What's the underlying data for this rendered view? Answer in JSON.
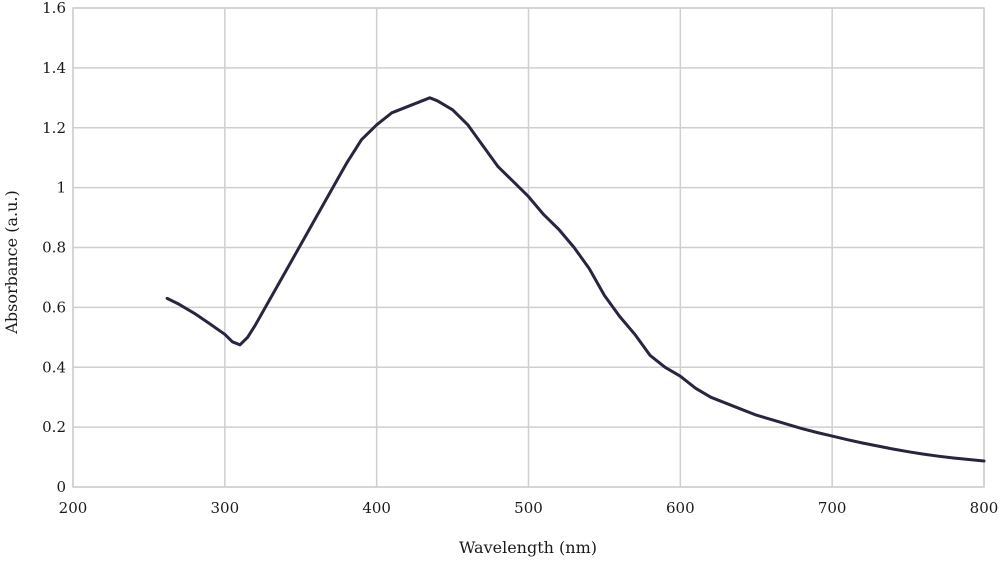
{
  "chart_data": {
    "type": "line",
    "xlabel": "Wavelength (nm)",
    "ylabel": "Absorbance (a.u.)",
    "xlim": [
      200,
      800
    ],
    "ylim": [
      0,
      1.6
    ],
    "x_ticks": [
      200,
      300,
      400,
      500,
      600,
      700,
      800
    ],
    "x_tick_labels": [
      "200",
      "300",
      "400",
      "500",
      "600",
      "700",
      "800"
    ],
    "y_ticks": [
      0,
      0.2,
      0.4,
      0.6,
      0.8,
      1.0,
      1.2,
      1.4,
      1.6
    ],
    "y_tick_labels": [
      "0",
      "0.2",
      "0.4",
      "0.6",
      "0.8",
      "1",
      "1.2",
      "1.4",
      "1.6"
    ],
    "grid": true,
    "legend": "none",
    "line_color": "#2b2340",
    "grid_color": "#cfcfcf",
    "series": [
      {
        "x": [
          262,
          270,
          280,
          290,
          300,
          305,
          310,
          315,
          320,
          330,
          340,
          350,
          360,
          370,
          380,
          390,
          400,
          410,
          420,
          430,
          435,
          440,
          450,
          460,
          470,
          480,
          490,
          500,
          510,
          520,
          530,
          540,
          550,
          560,
          570,
          580,
          590,
          600,
          610,
          620,
          630,
          640,
          650,
          660,
          670,
          680,
          690,
          700,
          710,
          720,
          730,
          740,
          750,
          760,
          770,
          780,
          790,
          800
        ],
        "y": [
          0.63,
          0.61,
          0.58,
          0.545,
          0.51,
          0.485,
          0.475,
          0.5,
          0.54,
          0.63,
          0.72,
          0.81,
          0.9,
          0.99,
          1.08,
          1.16,
          1.21,
          1.25,
          1.27,
          1.29,
          1.3,
          1.29,
          1.26,
          1.21,
          1.14,
          1.07,
          1.02,
          0.97,
          0.91,
          0.86,
          0.8,
          0.73,
          0.64,
          0.57,
          0.51,
          0.44,
          0.4,
          0.37,
          0.33,
          0.3,
          0.28,
          0.26,
          0.24,
          0.225,
          0.21,
          0.195,
          0.182,
          0.17,
          0.158,
          0.147,
          0.137,
          0.127,
          0.118,
          0.11,
          0.103,
          0.097,
          0.092,
          0.087
        ]
      }
    ]
  }
}
